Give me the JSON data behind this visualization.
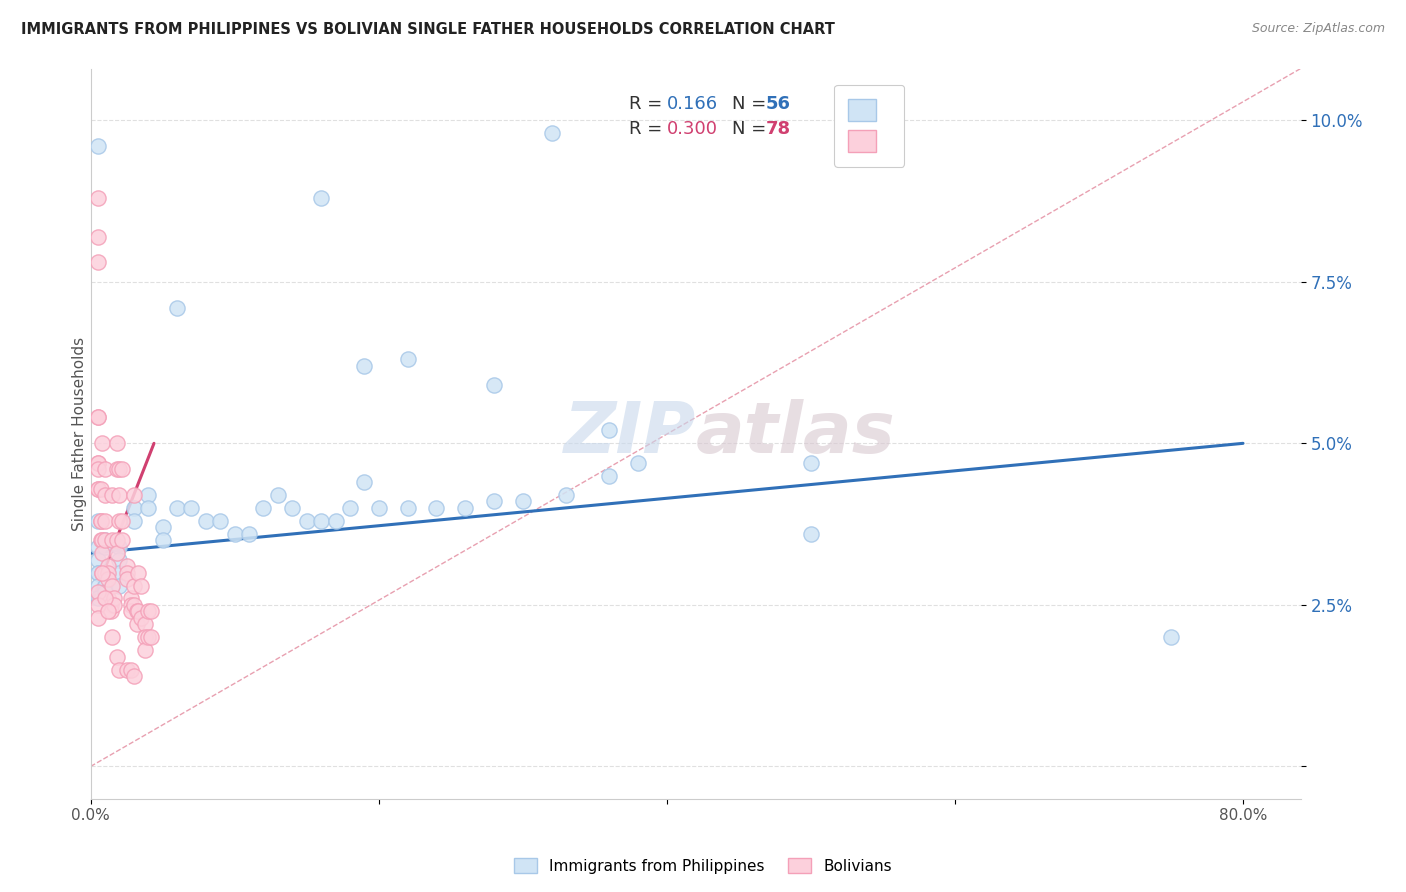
{
  "title": "IMMIGRANTS FROM PHILIPPINES VS BOLIVIAN SINGLE FATHER HOUSEHOLDS CORRELATION CHART",
  "source": "Source: ZipAtlas.com",
  "ylabel": "Single Father Households",
  "yticks": [
    0.0,
    0.025,
    0.05,
    0.075,
    0.1
  ],
  "ytick_labels": [
    "",
    "2.5%",
    "5.0%",
    "7.5%",
    "10.0%"
  ],
  "xticks": [
    0.0,
    0.2,
    0.4,
    0.6,
    0.8
  ],
  "xtick_labels": [
    "0.0%",
    "",
    "",
    "",
    "80.0%"
  ],
  "xlim": [
    0.0,
    0.84
  ],
  "ylim": [
    -0.005,
    0.108
  ],
  "blue_color": "#a8c8e8",
  "pink_color": "#f4a0b8",
  "blue_fill_color": "#d0e4f5",
  "pink_fill_color": "#fcd0dc",
  "blue_line_color": "#3070b8",
  "pink_line_color": "#d04070",
  "diag_line_color": "#e8a0b0",
  "watermark_color": "#d0e0f0",
  "blue_scatter_x": [
    0.005,
    0.16,
    0.32,
    0.06,
    0.19,
    0.36,
    0.38,
    0.22,
    0.28,
    0.005,
    0.005,
    0.005,
    0.005,
    0.005,
    0.005,
    0.005,
    0.01,
    0.01,
    0.01,
    0.01,
    0.01,
    0.02,
    0.02,
    0.02,
    0.02,
    0.03,
    0.03,
    0.04,
    0.04,
    0.05,
    0.05,
    0.06,
    0.07,
    0.08,
    0.09,
    0.1,
    0.11,
    0.12,
    0.13,
    0.14,
    0.15,
    0.16,
    0.17,
    0.18,
    0.19,
    0.2,
    0.22,
    0.24,
    0.26,
    0.28,
    0.3,
    0.33,
    0.36,
    0.5,
    0.5,
    0.75
  ],
  "blue_scatter_y": [
    0.096,
    0.088,
    0.098,
    0.071,
    0.062,
    0.052,
    0.047,
    0.063,
    0.059,
    0.038,
    0.034,
    0.032,
    0.03,
    0.03,
    0.028,
    0.026,
    0.035,
    0.034,
    0.03,
    0.028,
    0.027,
    0.034,
    0.032,
    0.03,
    0.028,
    0.04,
    0.038,
    0.042,
    0.04,
    0.037,
    0.035,
    0.04,
    0.04,
    0.038,
    0.038,
    0.036,
    0.036,
    0.04,
    0.042,
    0.04,
    0.038,
    0.038,
    0.038,
    0.04,
    0.044,
    0.04,
    0.04,
    0.04,
    0.04,
    0.041,
    0.041,
    0.042,
    0.045,
    0.047,
    0.036,
    0.02
  ],
  "pink_scatter_x": [
    0.005,
    0.005,
    0.005,
    0.005,
    0.005,
    0.005,
    0.005,
    0.005,
    0.005,
    0.005,
    0.007,
    0.007,
    0.007,
    0.007,
    0.008,
    0.008,
    0.008,
    0.008,
    0.01,
    0.01,
    0.01,
    0.01,
    0.01,
    0.012,
    0.012,
    0.012,
    0.012,
    0.014,
    0.014,
    0.015,
    0.015,
    0.015,
    0.016,
    0.016,
    0.018,
    0.018,
    0.018,
    0.018,
    0.02,
    0.02,
    0.02,
    0.022,
    0.022,
    0.022,
    0.025,
    0.025,
    0.025,
    0.028,
    0.028,
    0.028,
    0.03,
    0.03,
    0.03,
    0.032,
    0.032,
    0.033,
    0.033,
    0.035,
    0.035,
    0.038,
    0.038,
    0.038,
    0.04,
    0.04,
    0.042,
    0.042,
    0.005,
    0.005,
    0.005,
    0.008,
    0.01,
    0.012,
    0.015,
    0.018,
    0.02,
    0.025,
    0.028,
    0.03
  ],
  "pink_scatter_y": [
    0.088,
    0.082,
    0.078,
    0.054,
    0.054,
    0.047,
    0.047,
    0.046,
    0.043,
    0.043,
    0.043,
    0.038,
    0.038,
    0.035,
    0.05,
    0.035,
    0.033,
    0.03,
    0.046,
    0.042,
    0.038,
    0.035,
    0.03,
    0.031,
    0.03,
    0.029,
    0.026,
    0.025,
    0.024,
    0.042,
    0.035,
    0.028,
    0.026,
    0.025,
    0.05,
    0.046,
    0.035,
    0.033,
    0.046,
    0.042,
    0.038,
    0.046,
    0.038,
    0.035,
    0.031,
    0.03,
    0.029,
    0.026,
    0.025,
    0.024,
    0.042,
    0.028,
    0.025,
    0.024,
    0.022,
    0.03,
    0.024,
    0.028,
    0.023,
    0.022,
    0.02,
    0.018,
    0.024,
    0.02,
    0.024,
    0.02,
    0.027,
    0.025,
    0.023,
    0.03,
    0.026,
    0.024,
    0.02,
    0.017,
    0.015,
    0.015,
    0.015,
    0.014
  ],
  "blue_line_x": [
    0.0,
    0.8
  ],
  "blue_line_y": [
    0.033,
    0.05
  ],
  "pink_line_x": [
    0.0,
    0.044
  ],
  "pink_line_y": [
    0.025,
    0.05
  ],
  "diag_line_x": [
    0.0,
    0.84
  ],
  "diag_line_y": [
    0.0,
    0.108
  ],
  "background_color": "#ffffff",
  "grid_color": "#e0e0e0"
}
